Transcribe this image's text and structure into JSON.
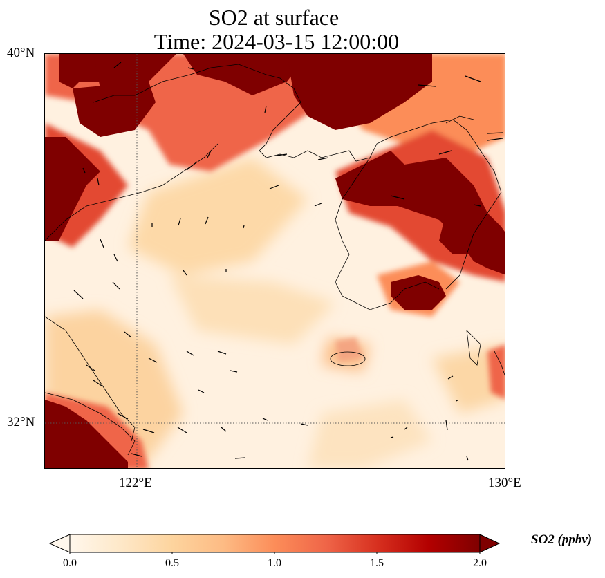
{
  "title": {
    "line1": "SO2 at surface",
    "line2": "Time: 2024-03-15 12:00:00"
  },
  "axes": {
    "lat_labels": [
      "40°N",
      "32°N"
    ],
    "lon_labels": [
      "122°E",
      "130°E"
    ],
    "extent": {
      "lon_min": 120,
      "lon_max": 130,
      "lat_min": 31,
      "lat_max": 40
    },
    "gridlines": {
      "lon": [
        122
      ],
      "lat": [
        32
      ],
      "style": "dotted"
    }
  },
  "colorbar": {
    "label": "SO2 (ppbv)",
    "ticks": [
      "0.0",
      "0.5",
      "1.0",
      "1.5",
      "2.0"
    ],
    "min": 0,
    "max": 2,
    "extend": "both",
    "colormap": "OrRd",
    "colors": [
      "#fff7ec",
      "#fee8c8",
      "#fdd49e",
      "#fdbb84",
      "#fc8d59",
      "#ef6548",
      "#d7301f",
      "#b30000",
      "#7f0000"
    ]
  },
  "map": {
    "variable": "SO2",
    "level": "surface",
    "units": "ppbv",
    "has_wind_vectors": true
  }
}
